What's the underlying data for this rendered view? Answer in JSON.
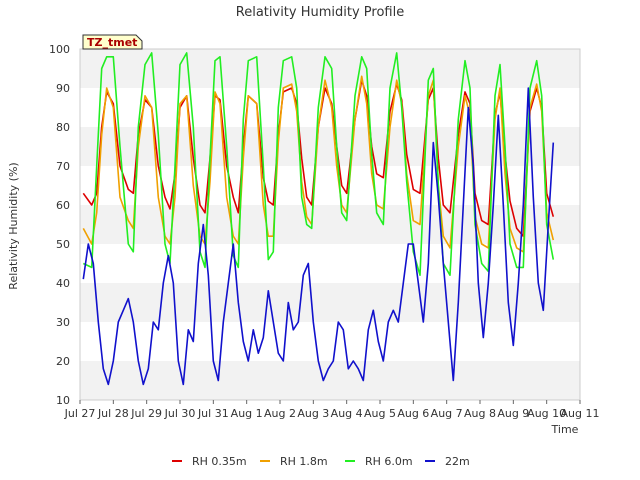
{
  "chart_data": {
    "type": "line",
    "title": "Relativity Humidity Profile",
    "xlabel": "Time",
    "ylabel": "Relativity Humidity (%)",
    "ylim": [
      10,
      100
    ],
    "yticks": [
      10,
      20,
      30,
      40,
      50,
      60,
      70,
      80,
      90,
      100
    ],
    "xticks": [
      "Jul 27",
      "Jul 28",
      "Jul 29",
      "Jul 30",
      "Jul 31",
      "Aug 1",
      "Aug 2",
      "Aug 3",
      "Aug 4",
      "Aug 5",
      "Aug 6",
      "Aug 7",
      "Aug 8",
      "Aug 9",
      "Aug 10",
      "Aug 11"
    ],
    "x_unit": "days since Jul 27",
    "xlim": [
      0,
      15
    ],
    "grid": "horizontal bands",
    "legend_position": "bottom",
    "badge": "TZ_tmet",
    "series": [
      {
        "name": "RH 0.35m",
        "color": "#dd0000",
        "x": [
          0.1,
          0.35,
          0.5,
          0.65,
          0.8,
          1.0,
          1.2,
          1.45,
          1.6,
          1.75,
          1.95,
          2.15,
          2.35,
          2.55,
          2.7,
          2.85,
          3.0,
          3.2,
          3.4,
          3.6,
          3.75,
          3.9,
          4.05,
          4.2,
          4.4,
          4.6,
          4.75,
          4.9,
          5.05,
          5.3,
          5.5,
          5.65,
          5.8,
          5.95,
          6.1,
          6.35,
          6.5,
          6.65,
          6.8,
          6.95,
          7.15,
          7.35,
          7.55,
          7.7,
          7.85,
          8.0,
          8.25,
          8.45,
          8.6,
          8.75,
          8.9,
          9.1,
          9.3,
          9.5,
          9.65,
          9.8,
          10.0,
          10.2,
          10.45,
          10.6,
          10.75,
          10.9,
          11.1,
          11.35,
          11.55,
          11.7,
          11.85,
          12.05,
          12.25,
          12.45,
          12.6,
          12.75,
          12.9,
          13.1,
          13.3,
          13.5,
          13.7,
          13.85,
          14.0,
          14.2
        ],
        "y": [
          63,
          60,
          63,
          80,
          89,
          86,
          70,
          64,
          63,
          78,
          87,
          85,
          70,
          62,
          59,
          68,
          85,
          88,
          72,
          60,
          58,
          72,
          88,
          87,
          70,
          62,
          58,
          75,
          88,
          86,
          67,
          61,
          60,
          78,
          89,
          90,
          86,
          72,
          62,
          60,
          80,
          90,
          86,
          75,
          65,
          63,
          82,
          92,
          88,
          75,
          68,
          67,
          84,
          91,
          87,
          73,
          64,
          63,
          87,
          90,
          72,
          60,
          58,
          78,
          89,
          86,
          63,
          56,
          55,
          83,
          89,
          73,
          61,
          54,
          52,
          84,
          90,
          85,
          63,
          57
        ]
      },
      {
        "name": "RH 1.8m",
        "color": "#f0a000",
        "x": [
          0.1,
          0.35,
          0.5,
          0.65,
          0.8,
          1.0,
          1.2,
          1.45,
          1.6,
          1.75,
          1.95,
          2.15,
          2.35,
          2.55,
          2.7,
          2.85,
          3.0,
          3.2,
          3.4,
          3.6,
          3.75,
          3.9,
          4.05,
          4.2,
          4.4,
          4.6,
          4.75,
          4.9,
          5.05,
          5.3,
          5.5,
          5.65,
          5.8,
          5.95,
          6.1,
          6.35,
          6.5,
          6.65,
          6.8,
          6.95,
          7.15,
          7.35,
          7.55,
          7.7,
          7.85,
          8.0,
          8.25,
          8.45,
          8.6,
          8.75,
          8.9,
          9.1,
          9.3,
          9.5,
          9.65,
          9.8,
          10.0,
          10.2,
          10.45,
          10.6,
          10.75,
          10.9,
          11.1,
          11.35,
          11.55,
          11.7,
          11.85,
          12.05,
          12.25,
          12.45,
          12.6,
          12.75,
          12.9,
          13.1,
          13.3,
          13.5,
          13.7,
          13.85,
          14.0,
          14.2
        ],
        "y": [
          54,
          50,
          58,
          78,
          90,
          85,
          62,
          56,
          54,
          75,
          88,
          85,
          62,
          52,
          50,
          62,
          86,
          88,
          65,
          52,
          50,
          66,
          89,
          86,
          62,
          52,
          50,
          72,
          88,
          86,
          60,
          52,
          52,
          76,
          90,
          91,
          84,
          66,
          57,
          55,
          80,
          92,
          85,
          70,
          60,
          58,
          82,
          93,
          86,
          68,
          60,
          59,
          80,
          92,
          86,
          68,
          56,
          55,
          88,
          92,
          65,
          52,
          49,
          75,
          88,
          83,
          57,
          50,
          49,
          82,
          90,
          68,
          54,
          49,
          48,
          85,
          91,
          84,
          58,
          51
        ]
      },
      {
        "name": "RH 6.0m",
        "color": "#22ee22",
        "x": [
          0.1,
          0.35,
          0.5,
          0.65,
          0.8,
          1.0,
          1.2,
          1.45,
          1.6,
          1.75,
          1.95,
          2.15,
          2.35,
          2.55,
          2.7,
          2.85,
          3.0,
          3.2,
          3.4,
          3.6,
          3.75,
          3.9,
          4.05,
          4.2,
          4.4,
          4.6,
          4.75,
          4.9,
          5.05,
          5.3,
          5.5,
          5.65,
          5.8,
          5.95,
          6.1,
          6.35,
          6.5,
          6.65,
          6.8,
          6.95,
          7.15,
          7.35,
          7.55,
          7.7,
          7.85,
          8.0,
          8.25,
          8.45,
          8.6,
          8.75,
          8.9,
          9.1,
          9.3,
          9.5,
          9.65,
          9.8,
          10.0,
          10.2,
          10.45,
          10.6,
          10.75,
          10.9,
          11.1,
          11.35,
          11.55,
          11.7,
          11.85,
          12.05,
          12.25,
          12.45,
          12.6,
          12.75,
          12.9,
          13.1,
          13.3,
          13.5,
          13.7,
          13.85,
          14.0,
          14.2
        ],
        "y": [
          45,
          44,
          70,
          95,
          98,
          98,
          75,
          50,
          48,
          80,
          96,
          99,
          78,
          50,
          45,
          70,
          96,
          99,
          80,
          48,
          44,
          72,
          97,
          98,
          75,
          47,
          44,
          82,
          97,
          98,
          70,
          46,
          48,
          85,
          97,
          98,
          90,
          62,
          55,
          54,
          85,
          98,
          95,
          75,
          58,
          56,
          88,
          98,
          95,
          73,
          58,
          55,
          90,
          99,
          85,
          66,
          48,
          42,
          92,
          95,
          65,
          45,
          42,
          82,
          97,
          90,
          55,
          45,
          43,
          88,
          96,
          75,
          50,
          44,
          44,
          90,
          97,
          88,
          55,
          46
        ]
      },
      {
        "name": "22m",
        "color": "#1111cc",
        "x": [
          0.1,
          0.25,
          0.4,
          0.55,
          0.7,
          0.85,
          1.0,
          1.15,
          1.3,
          1.45,
          1.6,
          1.75,
          1.9,
          2.05,
          2.2,
          2.35,
          2.5,
          2.65,
          2.8,
          2.95,
          3.1,
          3.25,
          3.4,
          3.55,
          3.7,
          3.85,
          4.0,
          4.15,
          4.3,
          4.45,
          4.6,
          4.75,
          4.9,
          5.05,
          5.2,
          5.35,
          5.5,
          5.65,
          5.8,
          5.95,
          6.1,
          6.25,
          6.4,
          6.55,
          6.7,
          6.85,
          7.0,
          7.15,
          7.3,
          7.45,
          7.6,
          7.75,
          7.9,
          8.05,
          8.2,
          8.35,
          8.5,
          8.65,
          8.8,
          8.95,
          9.1,
          9.25,
          9.4,
          9.55,
          9.7,
          9.85,
          10.0,
          10.15,
          10.3,
          10.45,
          10.6,
          10.75,
          10.9,
          11.05,
          11.2,
          11.35,
          11.5,
          11.65,
          11.8,
          11.95,
          12.1,
          12.25,
          12.4,
          12.55,
          12.7,
          12.85,
          13.0,
          13.15,
          13.3,
          13.45,
          13.6,
          13.75,
          13.9,
          14.05,
          14.2
        ],
        "y": [
          41,
          50,
          45,
          30,
          18,
          14,
          20,
          30,
          33,
          36,
          30,
          20,
          14,
          18,
          30,
          28,
          40,
          47,
          40,
          20,
          14,
          28,
          25,
          45,
          55,
          42,
          20,
          15,
          30,
          40,
          50,
          35,
          25,
          20,
          28,
          22,
          26,
          38,
          30,
          22,
          20,
          35,
          28,
          30,
          42,
          45,
          30,
          20,
          15,
          18,
          20,
          30,
          28,
          18,
          20,
          18,
          15,
          28,
          33,
          25,
          20,
          30,
          33,
          30,
          40,
          50,
          50,
          40,
          30,
          45,
          76,
          62,
          45,
          30,
          15,
          35,
          60,
          85,
          70,
          40,
          26,
          40,
          60,
          83,
          60,
          35,
          24,
          40,
          60,
          90,
          62,
          40,
          33,
          55,
          76
        ]
      }
    ]
  }
}
